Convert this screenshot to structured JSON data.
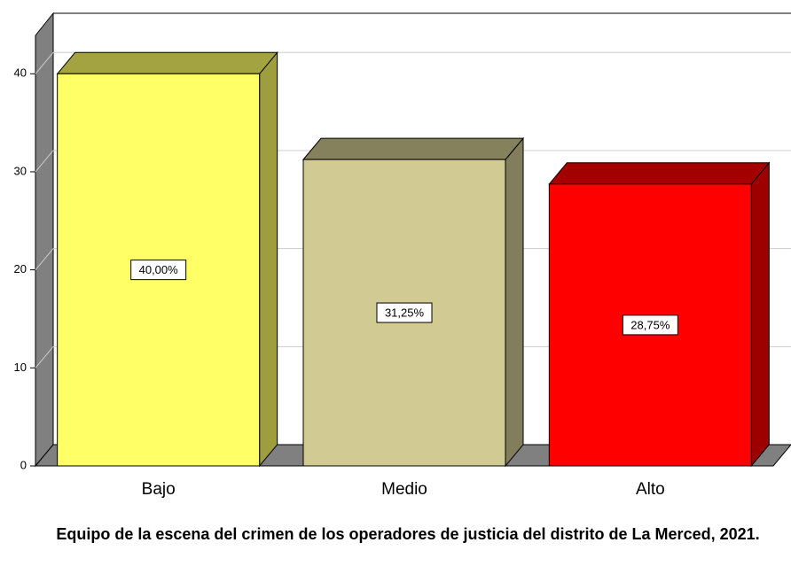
{
  "chart_data": {
    "type": "bar3d",
    "categories": [
      "Bajo",
      "Medio",
      "Alto"
    ],
    "values": [
      40,
      31.25,
      28.75
    ],
    "value_labels": [
      "40,00%",
      "31,25%",
      "28,75%"
    ],
    "colors": [
      "#ffff66",
      "#d1ca92",
      "#ff0000"
    ],
    "ylim": [
      0,
      44
    ],
    "yticks": [
      0,
      10,
      20,
      30,
      40
    ],
    "grid": true,
    "x_label": "Equipo de la escena del crimen de los operadores de justicia del distrito de La Merced, 2021."
  }
}
